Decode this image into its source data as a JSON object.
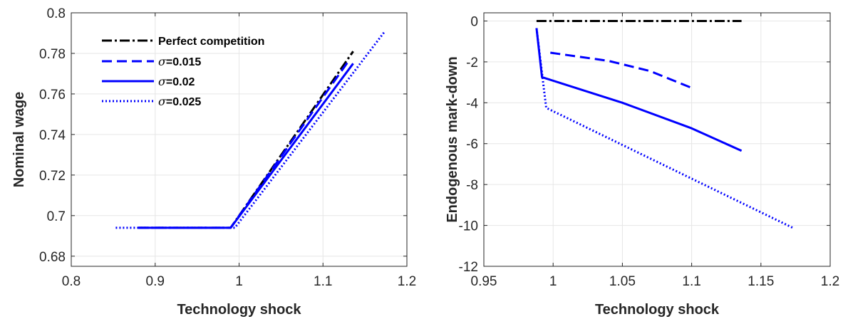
{
  "chart_data": [
    {
      "type": "line",
      "xlabel": "Technology shock",
      "ylabel": "Nominal wage",
      "xlim": [
        0.8,
        1.2
      ],
      "ylim": [
        0.675,
        0.8
      ],
      "xticks": [
        "0.8",
        "0.9",
        "1",
        "1.1",
        "1.2"
      ],
      "yticks": [
        "0.68",
        "0.7",
        "0.72",
        "0.74",
        "0.76",
        "0.78",
        "0.8"
      ],
      "grid": true,
      "legend_position": "top-left",
      "series": [
        {
          "name": "Perfect competition",
          "color": "#000000",
          "style": "dash-dot",
          "points": [
            [
              0.88,
              0.694
            ],
            [
              0.99,
              0.694
            ],
            [
              1.136,
              0.781
            ]
          ]
        },
        {
          "name": "=0.015",
          "color": "#0000ff",
          "style": "dashed",
          "points": [
            [
              0.88,
              0.694
            ],
            [
              0.99,
              0.694
            ],
            [
              1.13,
              0.776
            ]
          ]
        },
        {
          "name": "=0.02",
          "color": "#0000ff",
          "style": "solid",
          "points": [
            [
              0.88,
              0.694
            ],
            [
              0.99,
              0.694
            ],
            [
              1.136,
              0.775
            ]
          ]
        },
        {
          "name": "=0.025",
          "color": "#0000ff",
          "style": "dotted",
          "points": [
            [
              0.853,
              0.694
            ],
            [
              0.995,
              0.694
            ],
            [
              1.174,
              0.791
            ]
          ]
        }
      ]
    },
    {
      "type": "line",
      "xlabel": "Technology shock",
      "ylabel": "Endogenous mark-down",
      "xlim": [
        0.95,
        1.2
      ],
      "ylim": [
        -12,
        0.4
      ],
      "xticks": [
        "0.95",
        "1",
        "1.05",
        "1.1",
        "1.15",
        "1.2"
      ],
      "yticks": [
        "-12",
        "-10",
        "-8",
        "-6",
        "-4",
        "-2",
        "0"
      ],
      "grid": true,
      "series": [
        {
          "name": "Perfect competition",
          "color": "#000000",
          "style": "dash-dot",
          "points": [
            [
              0.988,
              0
            ],
            [
              1.136,
              0
            ]
          ]
        },
        {
          "name": "=0.015",
          "color": "#0000ff",
          "style": "dashed",
          "points": [
            [
              0.998,
              -1.55
            ],
            [
              1.04,
              -1.95
            ],
            [
              1.07,
              -2.45
            ],
            [
              1.101,
              -3.3
            ]
          ]
        },
        {
          "name": "=0.02",
          "color": "#0000ff",
          "style": "solid",
          "points": [
            [
              0.988,
              -0.35
            ],
            [
              0.992,
              -2.75
            ],
            [
              1.05,
              -4.0
            ],
            [
              1.1,
              -5.25
            ],
            [
              1.136,
              -6.35
            ]
          ]
        },
        {
          "name": "=0.025",
          "color": "#0000ff",
          "style": "dotted",
          "points": [
            [
              0.988,
              -0.35
            ],
            [
              0.995,
              -4.25
            ],
            [
              1.174,
              -10.15
            ]
          ]
        }
      ]
    }
  ],
  "legend": {
    "entries": [
      {
        "prefix": "",
        "label": "Perfect competition"
      },
      {
        "prefix": "σ",
        "label": "=0.015"
      },
      {
        "prefix": "σ",
        "label": "=0.02"
      },
      {
        "prefix": "σ",
        "label": "=0.025"
      }
    ]
  }
}
